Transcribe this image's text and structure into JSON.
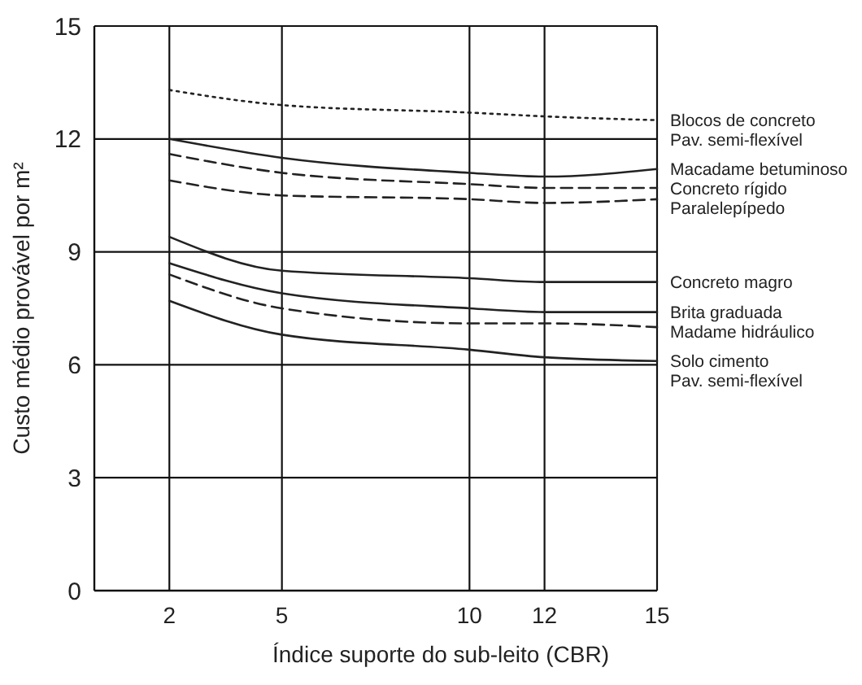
{
  "chart_data": {
    "type": "line",
    "xlabel": "Índice suporte do sub-leito (CBR)",
    "ylabel": "Custo médio provável por m²",
    "xlim": [
      0,
      15
    ],
    "ylim": [
      0,
      15
    ],
    "xticks": [
      2,
      5,
      10,
      12,
      15
    ],
    "yticks": [
      0,
      3,
      6,
      9,
      12,
      15
    ],
    "grid": true,
    "legend": false,
    "marker": "none",
    "x": [
      2,
      5,
      10,
      12,
      15
    ],
    "series": [
      {
        "name": "Blocos de concreto\nPav. semi-flexível",
        "color": "#222222",
        "line_style": "dotted",
        "values": [
          13.3,
          12.9,
          12.7,
          12.6,
          12.5
        ]
      },
      {
        "name": "Macadame betuminoso",
        "color": "#222222",
        "line_style": "solid",
        "values": [
          12.0,
          11.5,
          11.1,
          11.0,
          11.2
        ]
      },
      {
        "name": "Concreto rígido",
        "color": "#222222",
        "line_style": "dashed",
        "values": [
          11.6,
          11.1,
          10.8,
          10.7,
          10.7
        ]
      },
      {
        "name": "Paralelepípedo",
        "color": "#222222",
        "line_style": "dashed",
        "values": [
          10.9,
          10.5,
          10.4,
          10.3,
          10.4
        ]
      },
      {
        "name": "Concreto magro",
        "color": "#222222",
        "line_style": "solid",
        "values": [
          9.4,
          8.5,
          8.3,
          8.2,
          8.2
        ]
      },
      {
        "name": "Brita graduada",
        "color": "#222222",
        "line_style": "solid",
        "values": [
          8.7,
          7.9,
          7.5,
          7.4,
          7.4
        ]
      },
      {
        "name": "Madame hidráulico",
        "color": "#222222",
        "line_style": "dashed",
        "values": [
          8.4,
          7.5,
          7.1,
          7.1,
          7.0
        ]
      },
      {
        "name": "Solo cimento\nPav. semi-flexível",
        "color": "#222222",
        "line_style": "solid",
        "values": [
          7.7,
          6.8,
          6.4,
          6.2,
          6.1
        ]
      }
    ]
  }
}
